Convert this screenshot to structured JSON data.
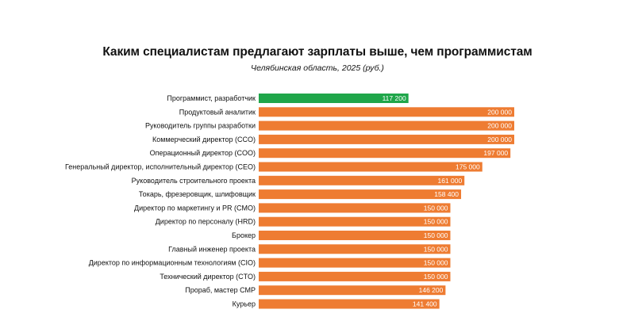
{
  "chart_data": {
    "type": "bar",
    "orientation": "horizontal",
    "title": "Каким специалистам предлагают зарплаты выше, чем программистам",
    "subtitle": "Челябинская область, 2025 (руб.)",
    "categories": [
      "Программист, разработчик",
      "Продуктовый аналитик",
      "Руководитель группы разработки",
      "Коммерческий директор (CCO)",
      "Операционный директор (COO)",
      "Генеральный директор, исполнительный директор (CEO)",
      "Руководитель строительного проекта",
      "Токарь, фрезеровщик, шлифовщик",
      "Директор по маркетингу и PR (CMO)",
      "Директор по персоналу (HRD)",
      "Брокер",
      "Главный инженер проекта",
      "Директор по информационным технологиям (CIO)",
      "Технический директор (CTO)",
      "Прораб, мастер СМР",
      "Курьер"
    ],
    "values": [
      117200,
      200000,
      200000,
      200000,
      197000,
      175000,
      161000,
      158400,
      150000,
      150000,
      150000,
      150000,
      150000,
      150000,
      146200,
      141400
    ],
    "value_labels": [
      "117 200",
      "200 000",
      "200 000",
      "200 000",
      "197 000",
      "175 000",
      "161 000",
      "158 400",
      "150 000",
      "150 000",
      "150 000",
      "150 000",
      "150 000",
      "150 000",
      "146 200",
      "141 400"
    ],
    "highlight_index": 0,
    "colors": {
      "highlight": "#1fa64a",
      "default": "#ee7c32"
    },
    "xlim": [
      0,
      200000
    ],
    "grid": false,
    "legend": "none"
  }
}
